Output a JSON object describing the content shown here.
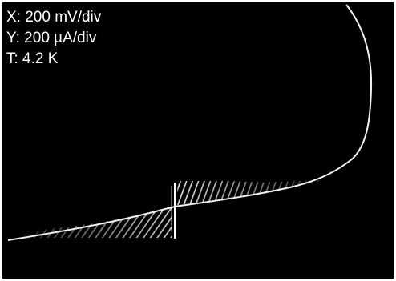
{
  "labels": {
    "x_scale": "X: 200 mV/div",
    "y_scale": "Y: 200 µA/div",
    "temperature": "T: 4.2 K"
  }
}
